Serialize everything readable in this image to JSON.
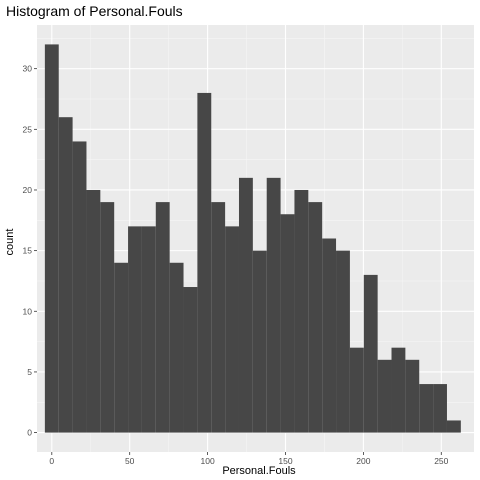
{
  "chart_data": {
    "type": "bar",
    "title": "Histogram of Personal.Fouls",
    "xlabel": "Personal.Fouls",
    "ylabel": "count",
    "xlim": [
      -9.5,
      271
    ],
    "ylim": [
      -1.6,
      33.6
    ],
    "x_ticks": [
      0,
      50,
      100,
      150,
      200,
      250
    ],
    "x_tick_labels": [
      "0",
      "50",
      "100",
      "150",
      "200",
      "250"
    ],
    "y_ticks": [
      0,
      5,
      10,
      15,
      20,
      25,
      30
    ],
    "y_tick_labels": [
      "0",
      "5",
      "10",
      "15",
      "20",
      "25",
      "30"
    ],
    "bin_width": 8.9,
    "bin_start": -4.45,
    "values": [
      32,
      26,
      24,
      20,
      19,
      14,
      17,
      17,
      19,
      14,
      12,
      28,
      19,
      17,
      21,
      15,
      21,
      18,
      20,
      19,
      16,
      15,
      7,
      13,
      6,
      7,
      6,
      4,
      4,
      1
    ],
    "bar_color": "#474747",
    "panel_color": "#ebebeb",
    "grid": true
  }
}
